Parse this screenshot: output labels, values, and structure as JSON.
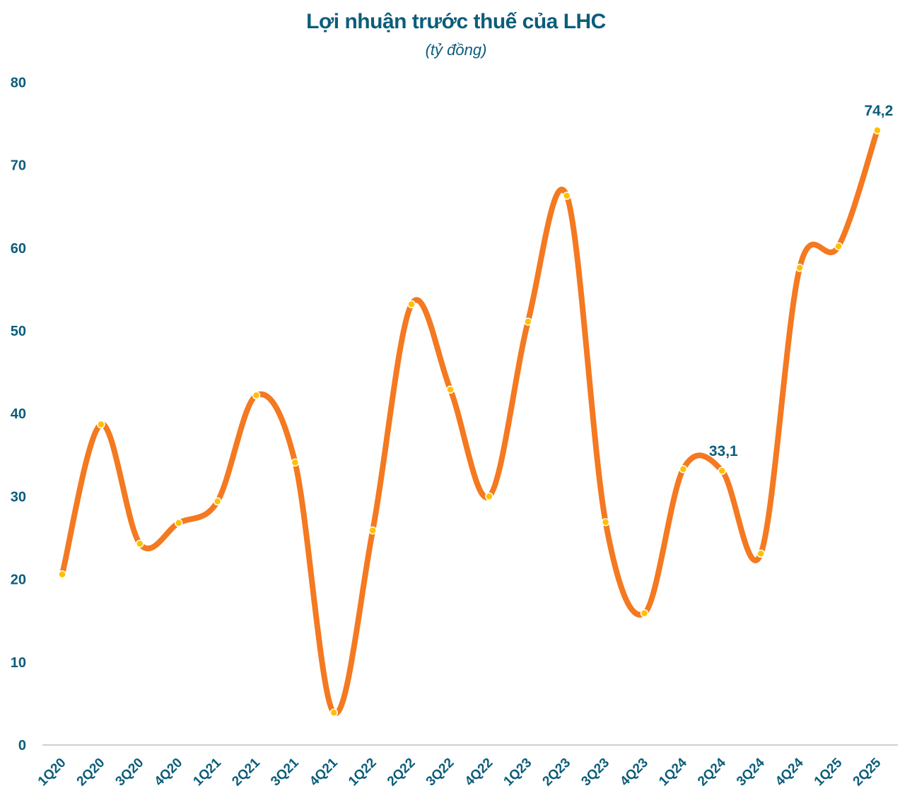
{
  "title": "Lợi nhuận trước thuế của LHC",
  "subtitle": "(tỷ đồng)",
  "chart_data": {
    "type": "line",
    "title": "Lợi nhuận trước thuế của LHC",
    "subtitle": "(tỷ đồng)",
    "xlabel": "",
    "ylabel": "",
    "categories": [
      "1Q20",
      "2Q20",
      "3Q20",
      "4Q20",
      "1Q21",
      "2Q21",
      "3Q21",
      "4Q21",
      "1Q22",
      "2Q22",
      "3Q22",
      "4Q22",
      "1Q23",
      "2Q23",
      "3Q23",
      "4Q23",
      "1Q24",
      "2Q24",
      "3Q24",
      "4Q24",
      "1Q25",
      "2Q25"
    ],
    "series": [
      {
        "values": [
          20.6,
          38.7,
          24.3,
          26.8,
          29.4,
          42.2,
          34.1,
          3.9,
          25.9,
          53.2,
          42.9,
          30.0,
          51.1,
          66.3,
          26.9,
          15.9,
          33.3,
          33.1,
          23.1,
          57.6,
          60.2,
          74.2
        ]
      }
    ],
    "data_labels": [
      {
        "category": "2Q24",
        "text": "33,1"
      },
      {
        "category": "2Q25",
        "text": "74,2"
      }
    ],
    "yticks": [
      0,
      10,
      20,
      30,
      40,
      50,
      60,
      70,
      80
    ],
    "ylim": [
      0,
      80
    ],
    "grid": false,
    "legend": "none",
    "colors": {
      "line": "#f47920",
      "marker": "#ffc000",
      "marker_edge": "#ffffff",
      "text": "#0b5d7a",
      "axis": "#bfbfbf"
    }
  }
}
